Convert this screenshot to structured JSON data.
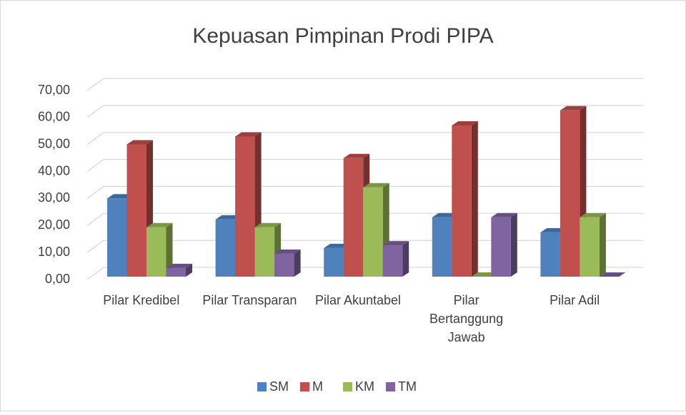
{
  "chart_data": {
    "type": "bar3d",
    "title": "Kepuasan Pimpinan Prodi PIPA",
    "categories": [
      "Pilar Kredibel",
      "Pilar Transparan",
      "Pilar Akuntabel",
      "Pilar Bertanggung Jawab",
      "Pilar Adil"
    ],
    "series": [
      {
        "name": "SM",
        "color": "#4f81bd",
        "values": [
          29,
          21.2,
          10.6,
          22,
          16.4
        ]
      },
      {
        "name": "M",
        "color": "#c0504d",
        "values": [
          49,
          51.9,
          43.9,
          56,
          61.6
        ]
      },
      {
        "name": "KM",
        "color": "#9bbb59",
        "values": [
          18.3,
          18.3,
          33.1,
          0,
          22
        ]
      },
      {
        "name": "TM",
        "color": "#8064a2",
        "values": [
          3.2,
          8.5,
          11.6,
          22,
          0
        ]
      }
    ],
    "ylim": [
      0,
      70
    ],
    "yticks": [
      {
        "value": 0,
        "label": "0,00"
      },
      {
        "value": 10,
        "label": "10,00"
      },
      {
        "value": 20,
        "label": "20,00"
      },
      {
        "value": 30,
        "label": "30,00"
      },
      {
        "value": 40,
        "label": "40,00"
      },
      {
        "value": 50,
        "label": "50,00"
      },
      {
        "value": 60,
        "label": "60,00"
      },
      {
        "value": 70,
        "label": "70,00"
      }
    ],
    "grid": true,
    "legend": "bottom"
  }
}
